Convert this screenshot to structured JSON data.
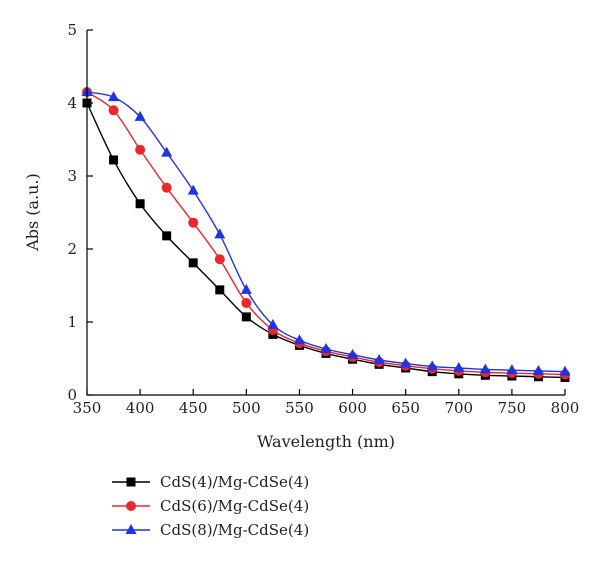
{
  "chart_data": {
    "type": "line",
    "title": "",
    "xlabel": "Wavelength (nm)",
    "ylabel": "Abs (a.u.)",
    "xlim": [
      350,
      800
    ],
    "ylim": [
      0,
      5
    ],
    "xticks": [
      350,
      400,
      450,
      500,
      550,
      600,
      650,
      700,
      750,
      800
    ],
    "yticks": [
      0,
      1,
      2,
      3,
      4,
      5
    ],
    "grid": false,
    "legend_position": "bottom-left, below plot",
    "series": [
      {
        "name": "CdS(4)/Mg-CdSe(4)",
        "marker": "square",
        "color": "#000000",
        "x": [
          350,
          375,
          400,
          425,
          450,
          475,
          500,
          525,
          550,
          575,
          600,
          625,
          650,
          675,
          700,
          725,
          750,
          775,
          800
        ],
        "y": [
          4.0,
          3.22,
          2.62,
          2.18,
          1.81,
          1.44,
          1.07,
          0.83,
          0.68,
          0.57,
          0.49,
          0.42,
          0.37,
          0.32,
          0.29,
          0.27,
          0.26,
          0.25,
          0.24
        ]
      },
      {
        "name": "CdS(6)/Mg-CdSe(4)",
        "marker": "circle",
        "color": "#e8282b",
        "x": [
          350,
          375,
          400,
          425,
          450,
          475,
          500,
          525,
          550,
          575,
          600,
          625,
          650,
          675,
          700,
          725,
          750,
          775,
          800
        ],
        "y": [
          4.15,
          3.9,
          3.36,
          2.84,
          2.36,
          1.86,
          1.26,
          0.89,
          0.71,
          0.6,
          0.52,
          0.45,
          0.4,
          0.36,
          0.33,
          0.31,
          0.3,
          0.29,
          0.28
        ]
      },
      {
        "name": "CdS(8)/Mg-CdSe(4)",
        "marker": "triangle",
        "color": "#1f34e0",
        "x": [
          350,
          375,
          400,
          425,
          450,
          475,
          500,
          525,
          550,
          575,
          600,
          625,
          650,
          675,
          700,
          725,
          750,
          775,
          800
        ],
        "y": [
          4.15,
          4.08,
          3.81,
          3.32,
          2.8,
          2.2,
          1.44,
          0.96,
          0.75,
          0.63,
          0.55,
          0.48,
          0.43,
          0.39,
          0.37,
          0.35,
          0.34,
          0.33,
          0.32
        ]
      }
    ]
  }
}
